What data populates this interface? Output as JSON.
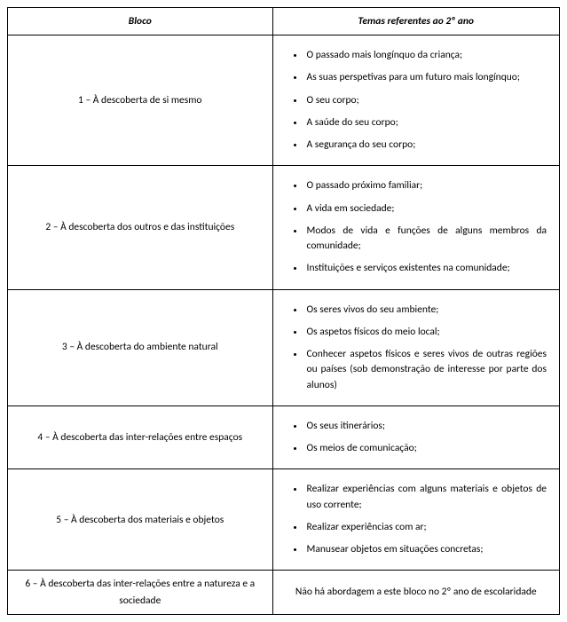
{
  "headers": {
    "bloco": "Bloco",
    "temas": "Temas referentes ao 2º ano"
  },
  "rows": [
    {
      "bloco": "1 – À descoberta de si mesmo",
      "items": [
        "O passado mais longínquo da criança;",
        "As suas perspetivas para um futuro mais longínquo;",
        "O seu corpo;",
        "A saúde do seu corpo;",
        "A segurança do seu corpo;"
      ]
    },
    {
      "bloco": "2 – À descoberta dos outros e das instituições",
      "items": [
        "O passado próximo familiar;",
        "A vida em sociedade;",
        "Modos de vida e funções de alguns membros da comunidade;",
        "Instituições e serviços existentes na comunidade;"
      ]
    },
    {
      "bloco": "3 – À descoberta do ambiente natural",
      "items": [
        "Os seres vivos do seu ambiente;",
        "Os aspetos físicos do meio local;",
        "Conhecer aspetos físicos e seres vivos de outras regiões ou países (sob demonstração de interesse por parte dos alunos)"
      ]
    },
    {
      "bloco": "4 – À descoberta das inter-relações entre espaços",
      "items": [
        "Os seus itinerários;",
        "Os meios de comunicação;"
      ]
    },
    {
      "bloco": "5 – À descoberta dos materiais e objetos",
      "items": [
        "Realizar experiências com alguns materiais e objetos de uso corrente;",
        "Realizar experiências com ar;",
        "Manusear objetos em situações concretas;"
      ]
    },
    {
      "bloco": "6 – À descoberta das inter-relações entre a natureza e a sociedade",
      "note": "Não há abordagem a este bloco no 2º ano de escolaridade"
    }
  ]
}
